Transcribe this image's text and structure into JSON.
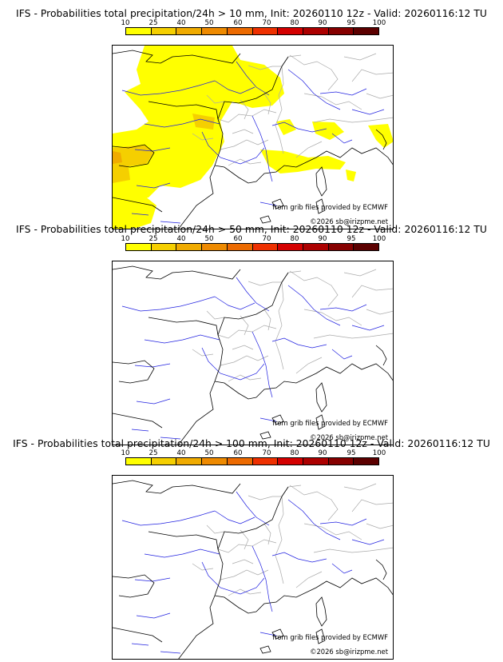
{
  "colorbar": {
    "ticks": [
      "10",
      "25",
      "40",
      "50",
      "60",
      "70",
      "80",
      "90",
      "95",
      "100"
    ],
    "colors": [
      "#ffff00",
      "#f5cf00",
      "#f0ab00",
      "#ee8a00",
      "#ec6a00",
      "#ee3000",
      "#d40000",
      "#ac0000",
      "#860000",
      "#5c0000"
    ]
  },
  "panels": [
    {
      "title": "IFS - Probabilities total precipitation/24h > 10 mm, Init: 20260110 12z - Valid: 20260116:12 TU",
      "threshold_mm": 10,
      "has_precip_areas": true,
      "credit_source": "from grib files provided by ECMWF",
      "credit_copyright": "©2026 sb@irizpme.net"
    },
    {
      "title": "IFS - Probabilities total precipitation/24h > 50 mm, Init: 20260110 12z - Valid: 20260116:12 TU",
      "threshold_mm": 50,
      "has_precip_areas": false,
      "credit_source": "from grib files provided by ECMWF",
      "credit_copyright": "©2026 sb@irizpme.net"
    },
    {
      "title": "IFS - Probabilities total precipitation/24h > 100 mm, Init: 20260110 12z - Valid: 20260116:12 TU",
      "threshold_mm": 100,
      "has_precip_areas": false,
      "credit_source": "from grib files provided by ECMWF",
      "credit_copyright": "©2026 sb@irizpme.net"
    }
  ],
  "map_style": {
    "coast_color": "#000000",
    "river_color": "#2020e0",
    "border_color": "#aaaaaa",
    "precip_color_10": "#ffff00",
    "precip_color_25": "#f5cf00",
    "precip_color_40": "#f0ab00"
  }
}
